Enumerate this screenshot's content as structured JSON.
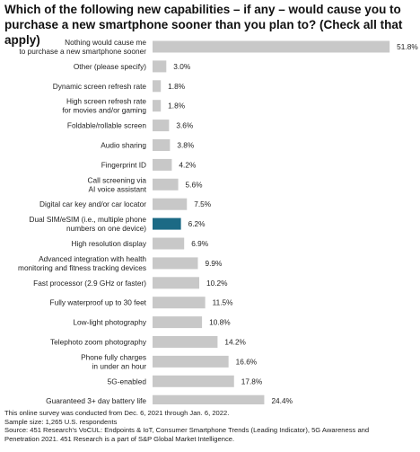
{
  "title": "Which of the following new capabilities – if any – would cause you to purchase a new smartphone sooner than you plan to? (Check all that apply)",
  "chart_data": {
    "type": "bar",
    "orientation": "horizontal",
    "categories": [
      [
        "Nothing would cause me",
        "to purchase a new smartphone sooner"
      ],
      [
        "Other (please specify)"
      ],
      [
        "Dynamic screen refresh rate"
      ],
      [
        "High screen refresh rate",
        "for movies and/or gaming"
      ],
      [
        "Foldable/rollable screen"
      ],
      [
        "Audio sharing"
      ],
      [
        "Fingerprint ID"
      ],
      [
        "Call screening via",
        "AI voice assistant"
      ],
      [
        "Digital car key and/or car locator"
      ],
      [
        "Dual SIM/eSIM (i.e., multiple phone",
        "numbers on one device)"
      ],
      [
        "High resolution display"
      ],
      [
        "Advanced integration with health",
        "monitoring and fitness tracking devices"
      ],
      [
        "Fast processor (2.9 GHz or faster)"
      ],
      [
        "Fully waterproof up to 30 feet"
      ],
      [
        "Low-light photography"
      ],
      [
        "Telephoto zoom photography"
      ],
      [
        "Phone fully charges",
        "in under an hour"
      ],
      [
        "5G-enabled"
      ],
      [
        "Guaranteed 3+ day battery life"
      ]
    ],
    "values": [
      51.8,
      3.0,
      1.8,
      1.8,
      3.6,
      3.8,
      4.2,
      5.6,
      7.5,
      6.2,
      6.9,
      9.9,
      10.2,
      11.5,
      10.8,
      14.2,
      16.6,
      17.8,
      24.4
    ],
    "value_labels": [
      "51.8%",
      "3.0%",
      "1.8%",
      "1.8%",
      "3.6%",
      "3.8%",
      "4.2%",
      "5.6%",
      "7.5%",
      "6.2%",
      "6.9%",
      "9.9%",
      "10.2%",
      "11.5%",
      "10.8%",
      "14.2%",
      "16.6%",
      "17.8%",
      "24.4%"
    ],
    "highlight_index": 9,
    "bar_color": "#c8c8c8",
    "highlight_color": "#1c6a85",
    "xlim": [
      0,
      60
    ],
    "grid": false
  },
  "footnote": [
    "This online survey was conducted from Dec. 6, 2021 through Jan. 6, 2022.",
    "Sample size: 1,265 U.S. respondents",
    "Source: 451 Research's VoCUL: Endpoints & IoT, Consumer Smartphone Trends (Leading Indicator), 5G Awareness and",
    "Penetration 2021. 451 Research is a part of S&P Global Market Intelligence."
  ]
}
